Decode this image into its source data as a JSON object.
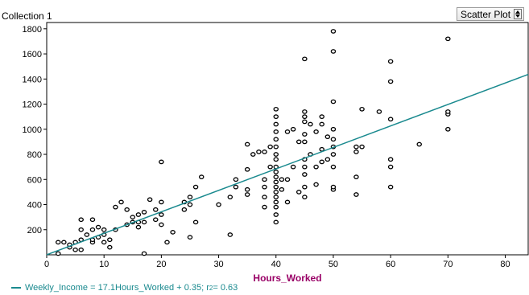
{
  "header": {
    "collection_title": "Collection 1",
    "plot_type": "Scatter Plot"
  },
  "legend": {
    "equation": "Weekly_Income = 17.1Hours_Worked + 0.35; r",
    "r2_exp": "2",
    "r2_value": " = 0.63"
  },
  "colors": {
    "regression_line": "#1a8a8f",
    "x_axis_label": "#990066",
    "points": "#000000"
  },
  "chart_data": {
    "type": "scatter",
    "title": "",
    "xlabel": "Hours_Worked",
    "ylabel": "",
    "xlim": [
      0,
      84
    ],
    "ylim": [
      0,
      1850
    ],
    "xticks": [
      0,
      10,
      20,
      30,
      40,
      50,
      60,
      70,
      80
    ],
    "yticks": [
      200,
      400,
      600,
      800,
      1000,
      1200,
      1400,
      1600,
      1800
    ],
    "grid": false,
    "regression": {
      "slope": 17.1,
      "intercept": 0.35,
      "r_squared": 0.63
    },
    "points": [
      [
        2,
        10
      ],
      [
        2,
        100
      ],
      [
        3,
        100
      ],
      [
        4,
        60
      ],
      [
        4,
        80
      ],
      [
        5,
        40
      ],
      [
        5,
        100
      ],
      [
        6,
        40
      ],
      [
        6,
        120
      ],
      [
        6,
        200
      ],
      [
        6,
        280
      ],
      [
        7,
        160
      ],
      [
        8,
        100
      ],
      [
        8,
        120
      ],
      [
        8,
        200
      ],
      [
        8,
        280
      ],
      [
        9,
        140
      ],
      [
        9,
        220
      ],
      [
        10,
        100
      ],
      [
        10,
        160
      ],
      [
        10,
        200
      ],
      [
        11,
        60
      ],
      [
        11,
        120
      ],
      [
        12,
        200
      ],
      [
        12,
        380
      ],
      [
        13,
        420
      ],
      [
        14,
        240
      ],
      [
        14,
        360
      ],
      [
        15,
        260
      ],
      [
        15,
        300
      ],
      [
        16,
        220
      ],
      [
        16,
        260
      ],
      [
        16,
        320
      ],
      [
        17,
        10
      ],
      [
        17,
        260
      ],
      [
        17,
        340
      ],
      [
        18,
        440
      ],
      [
        19,
        280
      ],
      [
        19,
        360
      ],
      [
        20,
        240
      ],
      [
        20,
        320
      ],
      [
        20,
        420
      ],
      [
        20,
        740
      ],
      [
        21,
        100
      ],
      [
        22,
        180
      ],
      [
        24,
        360
      ],
      [
        24,
        420
      ],
      [
        25,
        140
      ],
      [
        25,
        400
      ],
      [
        25,
        460
      ],
      [
        26,
        260
      ],
      [
        26,
        540
      ],
      [
        27,
        620
      ],
      [
        30,
        400
      ],
      [
        32,
        160
      ],
      [
        32,
        460
      ],
      [
        33,
        540
      ],
      [
        33,
        600
      ],
      [
        35,
        480
      ],
      [
        35,
        520
      ],
      [
        35,
        680
      ],
      [
        35,
        880
      ],
      [
        36,
        800
      ],
      [
        37,
        820
      ],
      [
        38,
        380
      ],
      [
        38,
        460
      ],
      [
        38,
        540
      ],
      [
        38,
        600
      ],
      [
        38,
        820
      ],
      [
        39,
        700
      ],
      [
        39,
        860
      ],
      [
        40,
        260
      ],
      [
        40,
        320
      ],
      [
        40,
        380
      ],
      [
        40,
        420
      ],
      [
        40,
        460
      ],
      [
        40,
        500
      ],
      [
        40,
        540
      ],
      [
        40,
        580
      ],
      [
        40,
        620
      ],
      [
        40,
        660
      ],
      [
        40,
        700
      ],
      [
        40,
        760
      ],
      [
        40,
        800
      ],
      [
        40,
        860
      ],
      [
        40,
        920
      ],
      [
        40,
        980
      ],
      [
        40,
        1040
      ],
      [
        40,
        1100
      ],
      [
        40,
        1160
      ],
      [
        41,
        520
      ],
      [
        41,
        600
      ],
      [
        42,
        420
      ],
      [
        42,
        600
      ],
      [
        42,
        980
      ],
      [
        43,
        700
      ],
      [
        43,
        1000
      ],
      [
        44,
        500
      ],
      [
        44,
        900
      ],
      [
        45,
        460
      ],
      [
        45,
        540
      ],
      [
        45,
        640
      ],
      [
        45,
        700
      ],
      [
        45,
        760
      ],
      [
        45,
        900
      ],
      [
        45,
        960
      ],
      [
        45,
        1060
      ],
      [
        45,
        1100
      ],
      [
        45,
        1140
      ],
      [
        45,
        1560
      ],
      [
        46,
        800
      ],
      [
        46,
        1040
      ],
      [
        47,
        560
      ],
      [
        47,
        700
      ],
      [
        47,
        980
      ],
      [
        48,
        740
      ],
      [
        48,
        840
      ],
      [
        48,
        1040
      ],
      [
        48,
        1100
      ],
      [
        49,
        760
      ],
      [
        49,
        940
      ],
      [
        50,
        520
      ],
      [
        50,
        540
      ],
      [
        50,
        700
      ],
      [
        50,
        800
      ],
      [
        50,
        860
      ],
      [
        50,
        920
      ],
      [
        50,
        1000
      ],
      [
        50,
        1220
      ],
      [
        50,
        1620
      ],
      [
        50,
        1780
      ],
      [
        54,
        480
      ],
      [
        54,
        620
      ],
      [
        54,
        820
      ],
      [
        54,
        860
      ],
      [
        55,
        860
      ],
      [
        55,
        1160
      ],
      [
        58,
        1140
      ],
      [
        60,
        540
      ],
      [
        60,
        700
      ],
      [
        60,
        760
      ],
      [
        60,
        1080
      ],
      [
        60,
        1380
      ],
      [
        60,
        1540
      ],
      [
        65,
        880
      ],
      [
        70,
        1000
      ],
      [
        70,
        1120
      ],
      [
        70,
        1140
      ],
      [
        70,
        1720
      ]
    ]
  }
}
